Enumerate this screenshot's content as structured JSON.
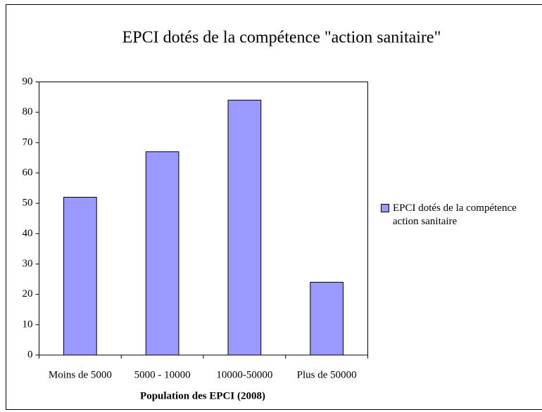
{
  "chart_data": {
    "type": "bar",
    "title": "EPCI dotés de la compétence \"action sanitaire\"",
    "x_label": "Population des EPCI (2008)",
    "categories": [
      "Moins de 5000",
      "5000 - 10000",
      "10000-50000",
      "Plus de 50000"
    ],
    "series": [
      {
        "name": "EPCI dotés de la compétence action sanitaire",
        "color": "#9999ff",
        "values": [
          52,
          67,
          84,
          24
        ]
      }
    ],
    "ylim": [
      0,
      90
    ],
    "yticks": [
      0,
      10,
      20,
      30,
      40,
      50,
      60,
      70,
      80,
      90
    ],
    "grid": false,
    "legend": "right"
  }
}
